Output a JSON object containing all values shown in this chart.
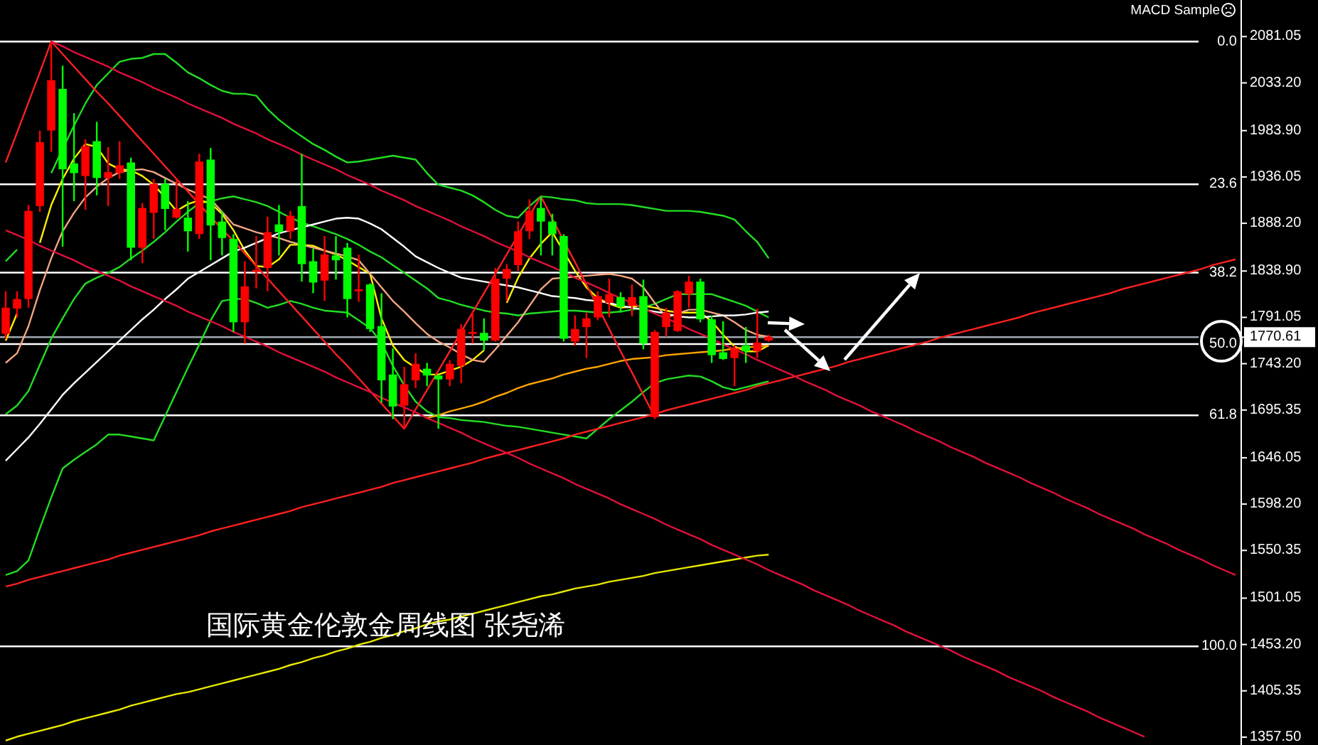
{
  "chart_data": {
    "type": "candlestick",
    "title": "国际黄金伦敦金周线图  张尧浠",
    "annotations": [
      "MACD Sample"
    ],
    "tick_labels": "y",
    "ylim": [
      1349.4,
      2118.8
    ],
    "yticks": [
      {
        "value": 2081.05,
        "label": "2081.05"
      },
      {
        "value": 2033.2,
        "label": "2033.20"
      },
      {
        "value": 1983.9,
        "label": "1983.90"
      },
      {
        "value": 1936.05,
        "label": "1936.05"
      },
      {
        "value": 1888.2,
        "label": "1888.20"
      },
      {
        "value": 1838.9,
        "label": "1838.90"
      },
      {
        "value": 1791.05,
        "label": "1791.05"
      },
      {
        "value": 1770.61,
        "label": "1770.61"
      },
      {
        "value": 1743.2,
        "label": "1743.20"
      },
      {
        "value": 1695.35,
        "label": "1695.35"
      },
      {
        "value": 1646.05,
        "label": "1646.05"
      },
      {
        "value": 1598.2,
        "label": "1598.20"
      },
      {
        "value": 1550.35,
        "label": "1550.35"
      },
      {
        "value": 1501.05,
        "label": "1501.05"
      },
      {
        "value": 1453.2,
        "label": "1453.20"
      },
      {
        "value": 1405.35,
        "label": "1405.35"
      },
      {
        "value": 1357.5,
        "label": "1357.50"
      }
    ],
    "y2lim": [
      116.3,
      -6.88
    ],
    "y2ticks": [
      {
        "value": 0,
        "label": "0.0"
      },
      23.6,
      38.2,
      {
        "value": 50,
        "label": "50.0"
      },
      61.8,
      {
        "value": 100,
        "label": "100.0"
      }
    ],
    "categories": [
      null,
      null,
      null,
      null,
      null,
      null,
      null,
      null,
      null,
      null,
      null,
      null,
      null,
      null,
      null,
      null,
      null,
      null,
      null,
      null,
      null,
      null,
      null,
      null,
      null,
      null,
      null,
      null,
      null,
      null,
      null,
      null,
      null,
      null,
      null,
      null,
      null,
      null,
      null,
      null,
      null,
      null,
      null,
      null,
      null,
      null,
      null,
      null,
      null,
      null,
      null,
      null,
      null,
      null,
      null,
      null,
      null,
      null,
      null,
      null,
      null,
      null,
      null,
      null,
      null,
      null,
      null,
      null,
      null,
      null,
      null,
      null,
      null,
      null,
      null,
      null,
      null,
      null,
      null,
      null,
      null,
      null,
      null,
      null,
      null,
      null,
      null,
      null,
      null,
      null,
      null,
      null,
      null,
      null,
      null,
      null,
      null,
      null,
      null,
      null,
      null,
      null,
      null,
      null,
      null,
      null,
      null,
      null,
      null
    ],
    "ohlc": [
      [
        1774,
        1818,
        1769,
        1801
      ],
      [
        1800,
        1818,
        1791,
        1810
      ],
      [
        1810,
        1907,
        1801,
        1901
      ],
      [
        1906,
        1984,
        1900,
        1972
      ],
      [
        1984,
        2076,
        1962,
        2036
      ],
      [
        2027,
        2051,
        1864,
        1944
      ],
      [
        1950,
        2002,
        1911,
        1940
      ],
      [
        1937,
        1975,
        1902,
        1968
      ],
      [
        1973,
        1993,
        1917,
        1935
      ],
      [
        1935,
        1967,
        1906,
        1941
      ],
      [
        1940,
        1973,
        1934,
        1948
      ],
      [
        1951,
        1956,
        1850,
        1863
      ],
      [
        1863,
        1909,
        1847,
        1904
      ],
      [
        1899,
        1934,
        1872,
        1929
      ],
      [
        1929,
        1934,
        1881,
        1903
      ],
      [
        1894,
        1934,
        1893,
        1903
      ],
      [
        1894,
        1911,
        1859,
        1880
      ],
      [
        1877,
        1960,
        1872,
        1952
      ],
      [
        1954,
        1966,
        1850,
        1886
      ],
      [
        1890,
        1901,
        1855,
        1873
      ],
      [
        1872,
        1877,
        1776,
        1786
      ],
      [
        1786,
        1849,
        1764,
        1823
      ],
      [
        1838,
        1875,
        1821,
        1840
      ],
      [
        1842,
        1895,
        1818,
        1879
      ],
      [
        1887,
        1907,
        1855,
        1879
      ],
      [
        1880,
        1901,
        1872,
        1896
      ],
      [
        1906,
        1960,
        1828,
        1846
      ],
      [
        1849,
        1862,
        1816,
        1827
      ],
      [
        1829,
        1875,
        1808,
        1856
      ],
      [
        1855,
        1875,
        1830,
        1850
      ],
      [
        1863,
        1868,
        1791,
        1810
      ],
      [
        1818,
        1856,
        1807,
        1820
      ],
      [
        1825,
        1826,
        1776,
        1779
      ],
      [
        1782,
        1816,
        1703,
        1726
      ],
      [
        1732,
        1759,
        1686,
        1699
      ],
      [
        1700,
        1740,
        1676,
        1722
      ],
      [
        1726,
        1754,
        1718,
        1743
      ],
      [
        1738,
        1744,
        1720,
        1731
      ],
      [
        1731,
        1732,
        1676,
        1727
      ],
      [
        1727,
        1747,
        1720,
        1743
      ],
      [
        1741,
        1784,
        1723,
        1779
      ],
      [
        1774,
        1797,
        1764,
        1776
      ],
      [
        1775,
        1790,
        1757,
        1767
      ],
      [
        1767,
        1842,
        1766,
        1831
      ],
      [
        1831,
        1846,
        1808,
        1841
      ],
      [
        1845,
        1890,
        1839,
        1880
      ],
      [
        1880,
        1913,
        1872,
        1901
      ],
      [
        1904,
        1916,
        1855,
        1890
      ],
      [
        1890,
        1898,
        1855,
        1877
      ],
      [
        1875,
        1877,
        1766,
        1769
      ],
      [
        1766,
        1793,
        1762,
        1779
      ],
      [
        1781,
        1796,
        1749,
        1790
      ],
      [
        1791,
        1818,
        1788,
        1813
      ],
      [
        1806,
        1831,
        1791,
        1815
      ],
      [
        1812,
        1817,
        1796,
        1802
      ],
      [
        1803,
        1825,
        1792,
        1812
      ],
      [
        1813,
        1830,
        1758,
        1764
      ],
      [
        1688,
        1778,
        1686,
        1776
      ],
      [
        1781,
        1801,
        1771,
        1796
      ],
      [
        1777,
        1819,
        1776,
        1818
      ],
      [
        1815,
        1834,
        1801,
        1828
      ],
      [
        1828,
        1831,
        1786,
        1789
      ],
      [
        1789,
        1793,
        1744,
        1752
      ],
      [
        1755,
        1787,
        1747,
        1748
      ],
      [
        1749,
        1762,
        1720,
        1759
      ],
      [
        1762,
        1781,
        1744,
        1756
      ],
      [
        1756,
        1800,
        1749,
        1765
      ],
      [
        1767,
        1773,
        1766,
        1771
      ],
      null,
      null,
      null,
      null,
      null,
      null,
      null,
      null,
      null,
      null,
      null,
      null,
      null,
      null,
      null,
      null,
      null,
      null,
      null,
      null,
      null,
      null,
      null,
      null,
      null,
      null,
      null,
      null,
      null,
      null,
      null,
      null,
      null,
      null,
      null,
      null,
      null,
      null,
      null,
      null,
      null
    ],
    "colors": [
      "#ff0000",
      "#ff0000",
      "#ff0000",
      "#ff0000",
      "#ff0000",
      "#00ff00",
      "#00ff00",
      "#ff0000",
      "#00ff00",
      "#ff0000",
      "#ff0000",
      "#00ff00",
      "#ff0000",
      "#ff0000",
      "#00ff00",
      "#ff0000",
      "#00ff00",
      "#ff0000",
      "#00ff00",
      "#00ff00",
      "#00ff00",
      "#ff0000",
      "#ff0000",
      "#ff0000",
      "#00ff00",
      "#ff0000",
      "#00ff00",
      "#00ff00",
      "#ff0000",
      "#00ff00",
      "#00ff00",
      "#ff0000",
      "#00ff00",
      "#00ff00",
      "#00ff00",
      "#ff0000",
      "#ff0000",
      "#00ff00",
      "#00ff00",
      "#ff0000",
      "#ff0000",
      "#ff0000",
      "#00ff00",
      "#ff0000",
      "#ff0000",
      "#ff0000",
      "#ff0000",
      "#00ff00",
      "#00ff00",
      "#00ff00",
      "#ff0000",
      "#ff0000",
      "#ff0000",
      "#ff0000",
      "#00ff00",
      "#ff0000",
      "#00ff00",
      "#ff0000",
      "#ff0000",
      "#ff0000",
      "#ff0000",
      "#00ff00",
      "#00ff00",
      "#00ff00",
      "#ff0000",
      "#00ff00",
      "#ff0000",
      "#ff0000",
      null,
      null,
      null,
      null,
      null,
      null,
      null,
      null,
      null,
      null,
      null,
      null,
      null,
      null,
      null,
      null,
      null,
      null,
      null,
      null,
      null,
      null,
      null,
      null,
      null,
      null,
      null,
      null,
      null,
      null,
      null,
      null,
      null,
      null,
      null,
      null,
      null,
      null,
      null,
      null,
      null
    ],
    "series": [
      {
        "type": "line",
        "color": "#22dd22",
        "values": [
          1849,
          1861,
          null,
          null,
          1940,
          1965,
          1989,
          2012,
          2031,
          2043,
          2055,
          2058,
          2059,
          2063,
          2063,
          2054,
          2044,
          2038,
          2031,
          2025,
          2022,
          2022,
          2020,
          2006,
          1995,
          1986,
          1978,
          1970,
          1964,
          1957,
          1951,
          1952,
          1954,
          1956,
          1958,
          1956,
          1954,
          1940,
          1928,
          1925,
          1922,
          1917,
          1910,
          1902,
          1896,
          1894,
          1906,
          1916,
          1915,
          1913,
          1912,
          1909,
          1908,
          1908,
          1908,
          1907,
          1905,
          1903,
          1901,
          1901,
          1901,
          1900,
          1898,
          1896,
          1892,
          1880,
          1869,
          1852,
          null,
          null,
          null,
          null,
          null,
          null,
          null,
          null,
          null,
          null,
          null,
          null,
          null,
          null,
          null,
          null,
          null,
          null,
          null,
          null,
          null,
          null,
          null,
          null,
          null,
          null,
          null,
          null,
          null,
          null,
          null,
          null,
          null,
          null,
          null,
          null,
          null,
          null,
          null,
          null,
          null
        ]
      },
      {
        "type": "line",
        "color": "#22dd22",
        "values": [
          1691,
          1700,
          1715,
          1742,
          1769,
          1790,
          1810,
          1826,
          1832,
          1837,
          1843,
          1852,
          1860,
          1869,
          1879,
          1890,
          1900,
          1909,
          1911,
          1914,
          1916,
          1913,
          1910,
          1906,
          1900,
          1894,
          1889,
          1885,
          1881,
          1877,
          1872,
          1866,
          1859,
          1853,
          1845,
          1837,
          1829,
          1821,
          1811,
          1808,
          1804,
          1801,
          1798,
          1796,
          1795,
          1793,
          1795,
          1796,
          1797,
          1798,
          1798,
          1797,
          1796,
          1796,
          1797,
          1799,
          1801,
          1805,
          1810,
          1815,
          1815,
          1815,
          1815,
          1811,
          1807,
          1803,
          1797,
          1791,
          null,
          null,
          null,
          null,
          null,
          null,
          null,
          null,
          null,
          null,
          null,
          null,
          null,
          null,
          null,
          null,
          null,
          null,
          null,
          null,
          null,
          null,
          null,
          null,
          null,
          null,
          null,
          null,
          null,
          null,
          null,
          null,
          null,
          null,
          null,
          null,
          null,
          null,
          null,
          null,
          null
        ]
      },
      {
        "type": "line",
        "color": "#22dd22",
        "values": [
          1525,
          1529,
          1540,
          1573,
          1605,
          1635,
          1644,
          1652,
          1660,
          1670,
          1670,
          1668,
          1666,
          1664,
          1689,
          1714,
          1739,
          1763,
          1788,
          1808,
          1810,
          1810,
          1806,
          1801,
          1804,
          1808,
          1805,
          1801,
          1798,
          1797,
          1796,
          1788,
          1780,
          1765,
          1741,
          1721,
          1704,
          1694,
          1688,
          1687,
          1685,
          1684,
          1683,
          1681,
          1679,
          1678,
          1676,
          1674,
          1672,
          1670,
          1668,
          1666,
          1676,
          1686,
          1695,
          1704,
          1714,
          1723,
          1727,
          1729,
          1731,
          1730,
          1725,
          1719,
          1716,
          1719,
          1722,
          1725,
          null,
          null,
          null,
          null,
          null,
          null,
          null,
          null,
          null,
          null,
          null,
          null,
          null,
          null,
          null,
          null,
          null,
          null,
          null,
          null,
          null,
          null,
          null,
          null,
          null,
          null,
          null,
          null,
          null,
          null,
          null,
          null,
          null,
          null,
          null,
          null,
          null,
          null,
          null,
          null,
          null
        ]
      },
      {
        "type": "line",
        "color": "#ffee00",
        "values": [
          1767,
          1795,
          null,
          1868,
          1907,
          1934,
          1955,
          1970,
          1967,
          1950,
          1944,
          1943,
          1937,
          1928,
          1915,
          1901,
          1908,
          1912,
          1909,
          1898,
          1881,
          1860,
          1844,
          1843,
          1851,
          1866,
          1866,
          1865,
          1860,
          1856,
          1850,
          1843,
          1836,
          1790,
          1762,
          1747,
          1739,
          1732,
          1732,
          1736,
          1740,
          1747,
          1757,
          null,
          1806,
          1832,
          1852,
          1867,
          1879,
          1859,
          1839,
          1822,
          1811,
          1805,
          1801,
          1802,
          1803,
          1801,
          1798,
          1796,
          1796,
          1796,
          1787,
          1773,
          1761,
          1756,
          1756,
          1762,
          null,
          null,
          null,
          null,
          null,
          null,
          null,
          null,
          null,
          null,
          null,
          null,
          null,
          null,
          null,
          null,
          null,
          null,
          null,
          null,
          null,
          null,
          null,
          null,
          null,
          null,
          null,
          null,
          null,
          null,
          null,
          null,
          null,
          null,
          null,
          null,
          null,
          null,
          null,
          null,
          null
        ]
      },
      {
        "type": "line",
        "color": "#f4a582",
        "values": [
          1744,
          1754,
          1782,
          1819,
          1852,
          1880,
          1899,
          1915,
          1926,
          1935,
          1941,
          1943,
          1944,
          1941,
          1935,
          1929,
          1923,
          1918,
          1913,
          1900,
          1887,
          1883,
          1879,
          1876,
          1873,
          1869,
          1866,
          1863,
          1860,
          1857,
          1854,
          1850,
          1836,
          1822,
          1808,
          1797,
          1785,
          1774,
          1766,
          1760,
          1753,
          1747,
          1745,
          1758,
          1772,
          1786,
          1803,
          1820,
          1831,
          1832,
          1833,
          1834,
          1835,
          1836,
          1834,
          1831,
          1822,
          1806,
          1791,
          1795,
          1799,
          1799,
          1796,
          1793,
          1786,
          1778,
          1773,
          1771,
          null,
          null,
          null,
          null,
          null,
          null,
          null,
          null,
          null,
          null,
          null,
          null,
          null,
          null,
          null,
          null,
          null,
          null,
          null,
          null,
          null,
          null,
          null,
          null,
          null,
          null,
          null,
          null,
          null,
          null,
          null,
          null,
          null,
          null,
          null,
          null,
          null,
          null,
          null,
          null,
          null
        ]
      },
      {
        "type": "line",
        "color": "#ffffff",
        "values": [
          1643,
          1655,
          1667,
          1681,
          1696,
          1711,
          1723,
          1734,
          1745,
          1756,
          1767,
          1778,
          1789,
          1799,
          1810,
          1820,
          1831,
          1838,
          1845,
          1852,
          1859,
          1863,
          1868,
          1873,
          1878,
          1881,
          1884,
          1887,
          1890,
          1893,
          1894,
          1893,
          1888,
          1882,
          1873,
          1864,
          1854,
          1848,
          1842,
          1837,
          1832,
          1830,
          1828,
          1826,
          1824,
          1822,
          1819,
          1816,
          1813,
          1812,
          1811,
          1809,
          1808,
          1806,
          1803,
          1801,
          1799,
          1797,
          1795,
          1792,
          1791,
          1791,
          1792,
          1793,
          1793,
          1794,
          1796,
          1797,
          null,
          null,
          null,
          null,
          null,
          null,
          null,
          null,
          null,
          null,
          null,
          null,
          null,
          null,
          null,
          null,
          null,
          null,
          null,
          null,
          null,
          null,
          null,
          null,
          null,
          null,
          null,
          null,
          null,
          null,
          null,
          null,
          null,
          null,
          null,
          null,
          null,
          null,
          null,
          null,
          null
        ]
      },
      {
        "type": "line",
        "color": "#ffa500",
        "values": [
          null,
          null,
          null,
          null,
          null,
          null,
          null,
          null,
          null,
          null,
          null,
          null,
          null,
          null,
          null,
          null,
          null,
          null,
          null,
          null,
          null,
          null,
          null,
          null,
          null,
          null,
          null,
          null,
          null,
          null,
          null,
          null,
          null,
          null,
          null,
          null,
          null,
          1687,
          1690,
          1694,
          1697,
          1700,
          1704,
          1709,
          1713,
          1718,
          1722,
          1725,
          1728,
          1732,
          1735,
          1738,
          1740,
          1743,
          1746,
          1748,
          1749,
          1750,
          1752,
          1753,
          1754,
          1755,
          1756,
          1757,
          1759,
          1760,
          1761,
          1762,
          null,
          null,
          null,
          null,
          null,
          null,
          null,
          null,
          null,
          null,
          null,
          null,
          null,
          null,
          null,
          null,
          null,
          null,
          null,
          null,
          null,
          null,
          null,
          null,
          null,
          null,
          null,
          null,
          null,
          null,
          null,
          null,
          null,
          null,
          null,
          null,
          null,
          null,
          null,
          null,
          null
        ]
      },
      {
        "type": "line",
        "color": "#e8e800",
        "values": [
          1354,
          1358,
          1361,
          1364,
          1367,
          1370,
          1374,
          1377,
          1380,
          1383,
          1386,
          1390,
          1393,
          1396,
          1399,
          1402,
          1404,
          1407,
          1410,
          1413,
          1416,
          1419,
          1422,
          1425,
          1428,
          1432,
          1435,
          1439,
          1442,
          1446,
          1449,
          1453,
          1456,
          1460,
          1463,
          1467,
          1470,
          1474,
          1477,
          1479,
          1482,
          1485,
          1488,
          1491,
          1494,
          1497,
          1500,
          1503,
          1505,
          1508,
          1511,
          1513,
          1515,
          1518,
          1520,
          1522,
          1524,
          1527,
          1529,
          1531,
          1533,
          1535,
          1537,
          1539,
          1541,
          1543,
          1545,
          1546,
          null,
          null,
          null,
          null,
          null,
          null,
          null,
          null,
          null,
          null,
          null,
          null,
          null,
          null,
          null,
          null,
          null,
          null,
          null,
          null,
          null,
          null,
          null,
          null,
          null,
          null,
          null,
          null,
          null,
          null,
          null,
          null,
          null,
          null,
          null,
          null,
          null,
          null,
          null,
          null,
          null
        ]
      },
      {
        "type": "line",
        "color": "#ff2020",
        "values": [
          1951,
          1982,
          2013,
          2044,
          2076,
          2063,
          2050,
          2037,
          2024,
          2012,
          1999,
          1986,
          1973,
          1960,
          1947,
          1934,
          1921,
          1908,
          1895,
          1882,
          1870,
          1857,
          1844,
          1831,
          1818,
          1805,
          1792,
          1779,
          1766,
          1753,
          1741,
          1728,
          1715,
          1702,
          1689,
          1676,
          1696,
          1716,
          1736,
          1756,
          1776,
          1796,
          1816,
          1836,
          1856,
          1876,
          1896,
          1916,
          1893,
          1870,
          1848,
          1825,
          1802,
          1779,
          1756,
          1734,
          1711,
          1688,
          null,
          null,
          null,
          null,
          null,
          null,
          null,
          null,
          null,
          null,
          null,
          null,
          null,
          null,
          null,
          null,
          null,
          null,
          null,
          null,
          null,
          null,
          null,
          null,
          null,
          null,
          null,
          null,
          null,
          null,
          null,
          null,
          null,
          null,
          null,
          null,
          null,
          null,
          null,
          null,
          null,
          null,
          null,
          null,
          null,
          null,
          null,
          null,
          null,
          null,
          null
        ]
      },
      {
        "type": "line",
        "color": "#ff2020",
        "values": [
          1513,
          1516,
          1520,
          1523,
          1526,
          1529,
          1532,
          1535,
          1538,
          1541,
          1545,
          1548,
          1551,
          1554,
          1557,
          1560,
          1563,
          1566,
          1570,
          1573,
          1576,
          1579,
          1582,
          1585,
          1588,
          1591,
          1595,
          1598,
          1601,
          1604,
          1607,
          1610,
          1613,
          1616,
          1620,
          1623,
          1626,
          1629,
          1632,
          1635,
          1638,
          1641,
          1645,
          1648,
          1651,
          1654,
          1657,
          1660,
          1663,
          1666,
          1670,
          1673,
          1676,
          1679,
          1682,
          1685,
          1688,
          1691,
          1695,
          1698,
          1701,
          1704,
          1707,
          1710,
          1713,
          1716,
          1720,
          1723,
          1726,
          1729,
          1732,
          1735,
          1738,
          1741,
          1745,
          1748,
          1751,
          1754,
          1757,
          1760,
          1763,
          1766,
          1770,
          1773,
          1776,
          1779,
          1782,
          1785,
          1788,
          1791,
          1795,
          1798,
          1801,
          1804,
          1807,
          1810,
          1813,
          1816,
          1820,
          1823,
          1826,
          1829,
          1832,
          1835,
          1838,
          1841,
          1845,
          1848,
          1851
        ]
      },
      {
        "type": "line",
        "color": "#e0103c",
        "values": [
          null,
          null,
          null,
          null,
          2076,
          2071,
          2065,
          2060,
          2055,
          2050,
          2044,
          2039,
          2034,
          2028,
          2023,
          2018,
          2012,
          2007,
          2002,
          1997,
          1991,
          1986,
          1981,
          1975,
          1970,
          1965,
          1959,
          1954,
          1949,
          1944,
          1938,
          1933,
          1928,
          1922,
          1917,
          1912,
          1906,
          1901,
          1896,
          1891,
          1885,
          1880,
          1875,
          1869,
          1864,
          1859,
          1853,
          1848,
          1843,
          1838,
          1832,
          1827,
          1822,
          1816,
          1811,
          1806,
          1800,
          1795,
          1790,
          1785,
          1779,
          1774,
          1769,
          1763,
          1758,
          1753,
          1747,
          1742,
          1737,
          1732,
          1726,
          1721,
          1716,
          1710,
          1705,
          1700,
          1694,
          1689,
          1684,
          1679,
          1673,
          1668,
          1663,
          1657,
          1652,
          1647,
          1641,
          1636,
          1631,
          1626,
          1620,
          1615,
          1610,
          1604,
          1599,
          1594,
          1588,
          1583,
          1578,
          1573,
          1567,
          1562,
          1557,
          1551,
          1546,
          1541,
          1535,
          1530,
          1525
        ]
      },
      {
        "type": "line",
        "color": "#e0103c",
        "values": [
          1881,
          1876,
          1871,
          1865,
          1860,
          1855,
          1850,
          1844,
          1839,
          1834,
          1829,
          1823,
          1818,
          1813,
          1808,
          1803,
          1797,
          1792,
          1787,
          1782,
          1776,
          1771,
          1766,
          1761,
          1755,
          1750,
          1745,
          1740,
          1735,
          1729,
          1724,
          1719,
          1714,
          1708,
          1703,
          1698,
          1693,
          1687,
          1682,
          1677,
          1672,
          1666,
          1661,
          1656,
          1651,
          1646,
          1640,
          1635,
          1630,
          1625,
          1619,
          1614,
          1609,
          1604,
          1598,
          1593,
          1588,
          1583,
          1577,
          1572,
          1567,
          1562,
          1556,
          1551,
          1546,
          1541,
          1536,
          1530,
          1525,
          1520,
          1515,
          1509,
          1504,
          1499,
          1494,
          1488,
          1483,
          1478,
          1473,
          1467,
          1462,
          1457,
          1452,
          1447,
          1441,
          1436,
          1431,
          1426,
          1420,
          1415,
          1410,
          1405,
          1399,
          1394,
          1389,
          1384,
          1378,
          1373,
          1368,
          1363,
          1358,
          null,
          null,
          null,
          null,
          null,
          null,
          null,
          null
        ]
      }
    ],
    "ref_lines": [
      {
        "axis": "y2",
        "value": 0,
        "color": "#ffffff"
      },
      {
        "axis": "y2",
        "value": 23.6,
        "color": "#ffffff"
      },
      {
        "axis": "y2",
        "value": 38.2,
        "color": "#ffffff"
      },
      {
        "axis": "y2",
        "value": 50,
        "color": "#ffffff"
      },
      {
        "axis": "y2",
        "value": 61.8,
        "color": "#ffffff"
      },
      {
        "axis": "y2",
        "value": 100,
        "color": "#ffffff"
      },
      {
        "axis": "y",
        "value": 1770.61,
        "color": "#a0a8b0"
      }
    ]
  }
}
